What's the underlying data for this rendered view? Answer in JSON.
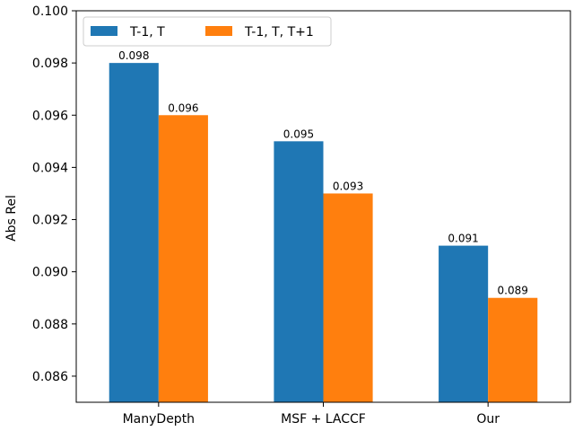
{
  "chart_data": {
    "type": "bar",
    "categories": [
      "ManyDepth",
      "MSF + LACCF",
      "Our"
    ],
    "series": [
      {
        "name": "T-1, T",
        "values": [
          0.098,
          0.095,
          0.091
        ],
        "labels": [
          "0.098",
          "0.095",
          "0.091"
        ],
        "color": "#1f77b4"
      },
      {
        "name": "T-1, T, T+1",
        "values": [
          0.096,
          0.093,
          0.089
        ],
        "labels": [
          "0.096",
          "0.093",
          "0.089"
        ],
        "color": "#ff7f0e"
      }
    ],
    "ylabel": "Abs Rel",
    "ylim": [
      0.085,
      0.1
    ],
    "yticks": [
      0.086,
      0.088,
      0.09,
      0.092,
      0.094,
      0.096,
      0.098,
      0.1
    ],
    "ytick_labels": [
      "0.086",
      "0.088",
      "0.090",
      "0.092",
      "0.094",
      "0.096",
      "0.098",
      "0.100"
    ],
    "grid": false,
    "legend_position": "top-left"
  }
}
